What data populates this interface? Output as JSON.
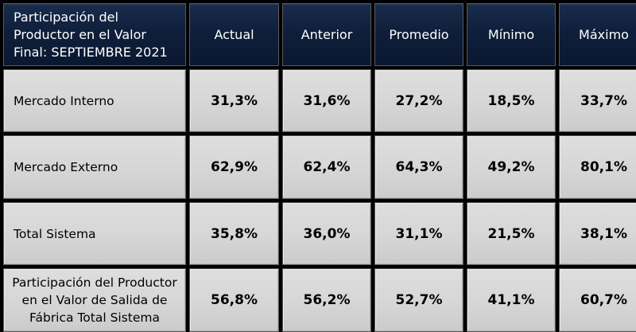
{
  "header": {
    "title": "Participación del Productor en el Valor Final: SEPTIEMBRE 2021",
    "columns": [
      "Actual",
      "Anterior",
      "Promedio",
      "Mínimo",
      "Máximo"
    ]
  },
  "rows": [
    {
      "label": "Mercado Interno",
      "values": [
        "31,3%",
        "31,6%",
        "27,2%",
        "18,5%",
        "33,7%"
      ]
    },
    {
      "label": "Mercado Externo",
      "values": [
        "62,9%",
        "62,4%",
        "64,3%",
        "49,2%",
        "80,1%"
      ]
    },
    {
      "label": "Total Sistema",
      "values": [
        "35,8%",
        "36,0%",
        "31,1%",
        "21,5%",
        "38,1%"
      ]
    },
    {
      "label": "Participación del Productor en el Valor de Salida de Fábrica Total Sistema",
      "values": [
        "56,8%",
        "56,2%",
        "52,7%",
        "41,1%",
        "60,7%"
      ]
    }
  ],
  "colors": {
    "header_bg": "#0f1f3b",
    "header_text": "#ffffff",
    "body_bg": "#d6d6d6",
    "frame": "#000000"
  }
}
